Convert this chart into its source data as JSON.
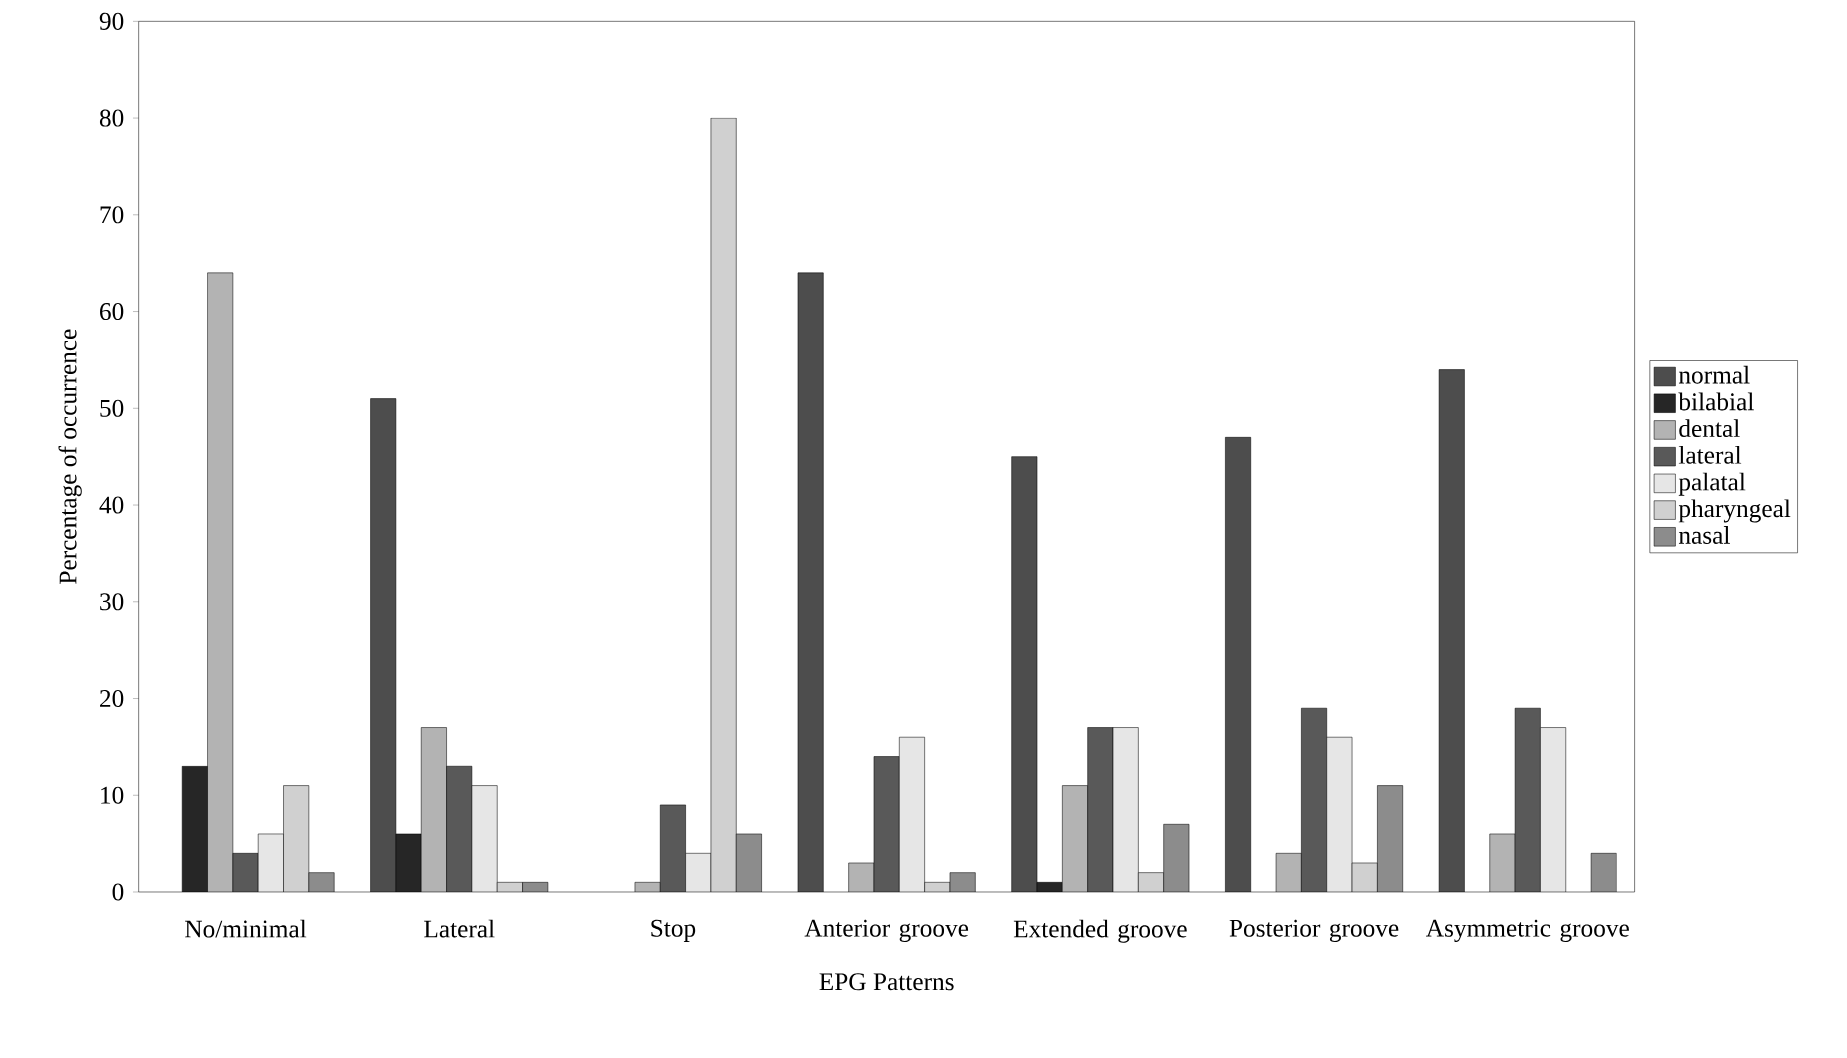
{
  "chart_data": {
    "type": "bar",
    "xlabel": "EPG Patterns",
    "ylabel": "Percentage of occurrence",
    "categories": [
      "No/minimal",
      "Lateral",
      "Stop",
      "Anterior groove",
      "Extended groove",
      "Posterior groove",
      "Asymmetric groove"
    ],
    "series": [
      {
        "name": "normal",
        "color": "#4d4d4d",
        "values": [
          null,
          51,
          null,
          64,
          45,
          47,
          54
        ]
      },
      {
        "name": "bilabial",
        "color": "#262626",
        "values": [
          13,
          6,
          null,
          null,
          1,
          null,
          null
        ]
      },
      {
        "name": "dental",
        "color": "#b3b3b3",
        "values": [
          64,
          17,
          1,
          3,
          11,
          4,
          6
        ]
      },
      {
        "name": "lateral",
        "color": "#595959",
        "values": [
          4,
          13,
          9,
          14,
          17,
          19,
          19
        ]
      },
      {
        "name": "palatal",
        "color": "#e6e6e6",
        "values": [
          6,
          11,
          4,
          16,
          17,
          16,
          17
        ]
      },
      {
        "name": "pharyngeal",
        "color": "#d0d0d0",
        "values": [
          11,
          1,
          80,
          1,
          2,
          3,
          null
        ]
      },
      {
        "name": "nasal",
        "color": "#8c8c8c",
        "values": [
          2,
          1,
          6,
          2,
          7,
          11,
          4
        ]
      }
    ],
    "ylim": [
      0,
      90
    ],
    "yticks": [
      0,
      10,
      20,
      30,
      40,
      50,
      60,
      70,
      80,
      90
    ],
    "legend": "right",
    "grid": false
  }
}
